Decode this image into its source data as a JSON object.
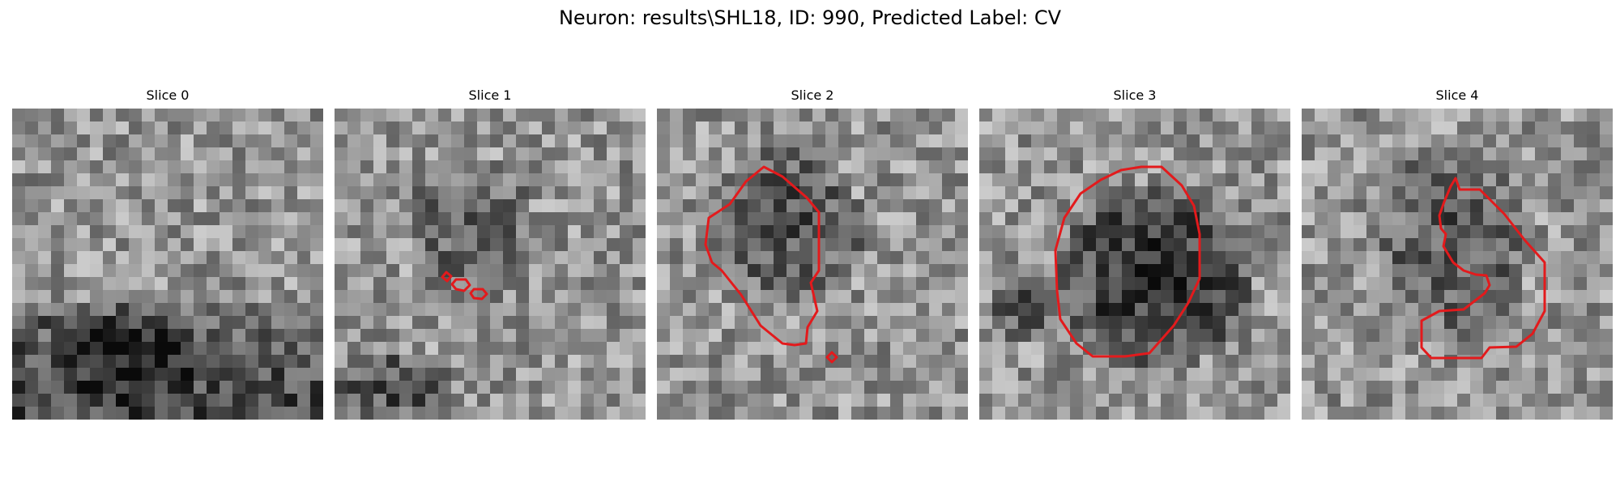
{
  "figure": {
    "title": "Neuron: results\\SHL18, ID: 990, Predicted Label: CV"
  },
  "panels": [
    {
      "title": "Slice 0",
      "has_contour": false
    },
    {
      "title": "Slice 1",
      "has_contour": true
    },
    {
      "title": "Slice 2",
      "has_contour": true
    },
    {
      "title": "Slice 3",
      "has_contour": true
    },
    {
      "title": "Slice 4",
      "has_contour": true
    }
  ],
  "colors": {
    "contour": "#e31a1c",
    "colormap": "gray"
  }
}
